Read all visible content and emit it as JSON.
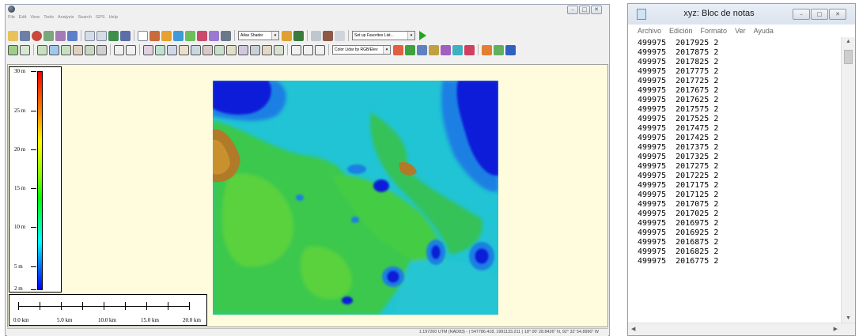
{
  "global_mapper": {
    "menu": [
      "File",
      "Edit",
      "View",
      "Tools",
      "Analysis",
      "Search",
      "GPS",
      "Help"
    ],
    "shader_select": "Atlas Shader",
    "favorites_select": "Set up Favorites List...",
    "lidar_select": "Color Lidar by RGB/Elev",
    "window_buttons": [
      "–",
      "□",
      "✕"
    ],
    "legend": {
      "labels": [
        "30 m",
        "25 m",
        "20 m",
        "15 m",
        "10 m",
        "5 m",
        "2 m"
      ],
      "gradient_colors": [
        "#ff0000",
        "#ff8000",
        "#ffff00",
        "#80ff00",
        "#00ff00",
        "#00ffff",
        "#0080ff",
        "#0000ff"
      ]
    },
    "scale_bar": {
      "labels": [
        "0.0 km",
        "5.0 km",
        "10.0 km",
        "15.0 km",
        "20.0 km"
      ]
    },
    "status_text": "1:197200 UTM (NAD83) - ( 547786.418, 1991133.211 ) 18° 00' 28.8426\" N, 92° 32' 54.8990\" W",
    "map_colors": {
      "background": "#fffbdd",
      "deep": "#0b1bd8",
      "mid_blue": "#1d86e2",
      "cyan": "#20c6d6",
      "green": "#36c84f",
      "light_green": "#57d23a",
      "brown": "#b07a28"
    }
  },
  "notepad": {
    "title": "xyz: Bloc de notas",
    "menu": [
      "Archivo",
      "Edición",
      "Formato",
      "Ver",
      "Ayuda"
    ],
    "window_buttons": [
      "–",
      "□",
      "✕"
    ],
    "lines": [
      "499975  2017925 2",
      "499975  2017875 2",
      "499975  2017825 2",
      "499975  2017775 2",
      "499975  2017725 2",
      "499975  2017675 2",
      "499975  2017625 2",
      "499975  2017575 2",
      "499975  2017525 2",
      "499975  2017475 2",
      "499975  2017425 2",
      "499975  2017375 2",
      "499975  2017325 2",
      "499975  2017275 2",
      "499975  2017225 2",
      "499975  2017175 2",
      "499975  2017125 2",
      "499975  2017075 2",
      "499975  2017025 2",
      "499975  2016975 2",
      "499975  2016925 2",
      "499975  2016875 2",
      "499975  2016825 2",
      "499975  2016775 2"
    ]
  }
}
